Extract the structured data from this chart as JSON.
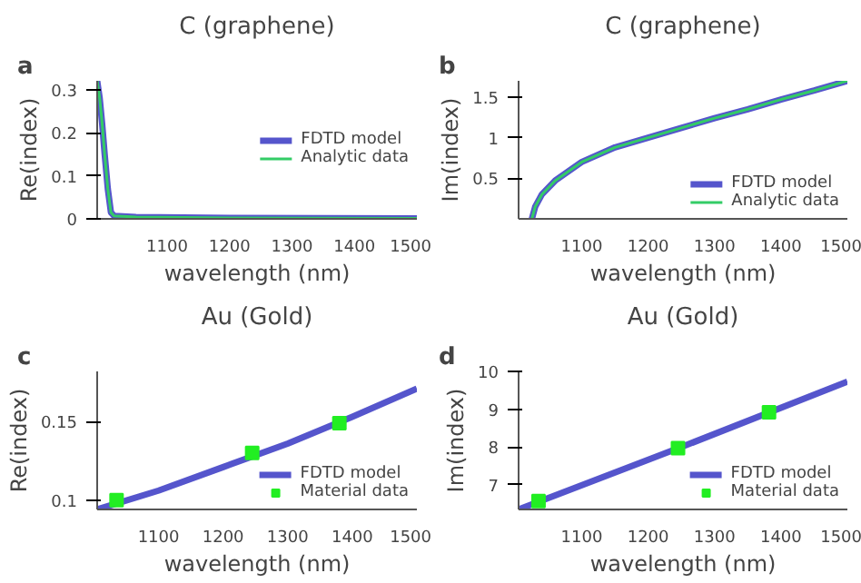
{
  "chart_data": [
    {
      "type": "line",
      "title": "C (graphene)",
      "annotations": [
        "a"
      ],
      "xlabel": "wavelength (nm)",
      "ylabel": "Re(index)",
      "xlim": [
        988,
        1500
      ],
      "ylim": [
        0,
        0.32
      ],
      "xticks": [
        1100,
        1200,
        1300,
        1400,
        1500
      ],
      "yticks": [
        0,
        0.1,
        0.2,
        0.3
      ],
      "grid": false,
      "legend": "right",
      "series": [
        {
          "name": "FDTD model",
          "color": "#5555cc",
          "x": [
            988,
            992,
            996,
            1000,
            1005,
            1010,
            1015,
            1050,
            1200,
            1500
          ],
          "values": [
            0.32,
            0.28,
            0.22,
            0.15,
            0.07,
            0.015,
            0.007,
            0.004,
            0.002,
            0.001
          ]
        },
        {
          "name": "Analytic data",
          "color": "#33cc66",
          "x": [
            988,
            992,
            996,
            1000,
            1005,
            1010,
            1015,
            1050,
            1200,
            1500
          ],
          "values": [
            0.32,
            0.28,
            0.22,
            0.15,
            0.07,
            0.015,
            0.007,
            0.004,
            0.002,
            0.001
          ]
        }
      ]
    },
    {
      "type": "line",
      "title": "C (graphene)",
      "annotations": [
        "b"
      ],
      "xlabel": "wavelength (nm)",
      "ylabel": "Im(index)",
      "xlim": [
        1005,
        1500
      ],
      "ylim": [
        0,
        1.7
      ],
      "xticks": [
        1100,
        1200,
        1300,
        1400,
        1500
      ],
      "yticks": [
        0.5,
        1,
        1.5
      ],
      "grid": false,
      "legend": "bottom right",
      "series": [
        {
          "name": "FDTD model",
          "color": "#5555cc",
          "x": [
            1025,
            1030,
            1040,
            1060,
            1100,
            1150,
            1200,
            1250,
            1300,
            1350,
            1400,
            1450,
            1500
          ],
          "values": [
            0,
            0.15,
            0.3,
            0.47,
            0.7,
            0.88,
            1.0,
            1.12,
            1.24,
            1.35,
            1.47,
            1.58,
            1.7
          ]
        },
        {
          "name": "Analytic data",
          "color": "#33cc66",
          "x": [
            1025,
            1030,
            1040,
            1060,
            1100,
            1150,
            1200,
            1250,
            1300,
            1350,
            1400,
            1450,
            1500
          ],
          "values": [
            0,
            0.15,
            0.3,
            0.47,
            0.7,
            0.88,
            1.0,
            1.12,
            1.24,
            1.35,
            1.47,
            1.58,
            1.7
          ]
        }
      ]
    },
    {
      "type": "line",
      "title": "Au (Gold)",
      "annotations": [
        "c"
      ],
      "xlabel": "wavelength (nm)",
      "ylabel": "Re(index)",
      "xlim": [
        1005,
        1500
      ],
      "ylim": [
        0.094,
        0.182
      ],
      "xticks": [
        1100,
        1200,
        1300,
        1400,
        1500
      ],
      "yticks": [
        0.1,
        0.15
      ],
      "grid": false,
      "legend": "bottom right",
      "series": [
        {
          "name": "FDTD model",
          "color": "#5555cc",
          "x": [
            1005,
            1100,
            1200,
            1300,
            1400,
            1500
          ],
          "values": [
            0.094,
            0.106,
            0.121,
            0.136,
            0.153,
            0.171
          ]
        },
        {
          "name": "Material data",
          "type": "scatter",
          "marker": "square",
          "color": "#22ee22",
          "x": [
            1035,
            1245,
            1380
          ],
          "values": [
            0.1,
            0.13,
            0.149
          ]
        }
      ]
    },
    {
      "type": "line",
      "title": "Au (Gold)",
      "annotations": [
        "d"
      ],
      "xlabel": "wavelength (nm)",
      "ylabel": "Im(index)",
      "xlim": [
        1005,
        1500
      ],
      "ylim": [
        6.35,
        10
      ],
      "xticks": [
        1100,
        1200,
        1300,
        1400,
        1500
      ],
      "yticks": [
        7,
        8,
        9,
        10
      ],
      "grid": false,
      "legend": "bottom right",
      "series": [
        {
          "name": "FDTD model",
          "color": "#5555cc",
          "x": [
            1005,
            1250,
            1500
          ],
          "values": [
            6.35,
            8.0,
            9.73
          ]
        },
        {
          "name": "Material data",
          "type": "scatter",
          "marker": "square",
          "color": "#22ee22",
          "x": [
            1035,
            1245,
            1382
          ],
          "values": [
            6.57,
            7.97,
            8.92
          ]
        }
      ]
    }
  ]
}
